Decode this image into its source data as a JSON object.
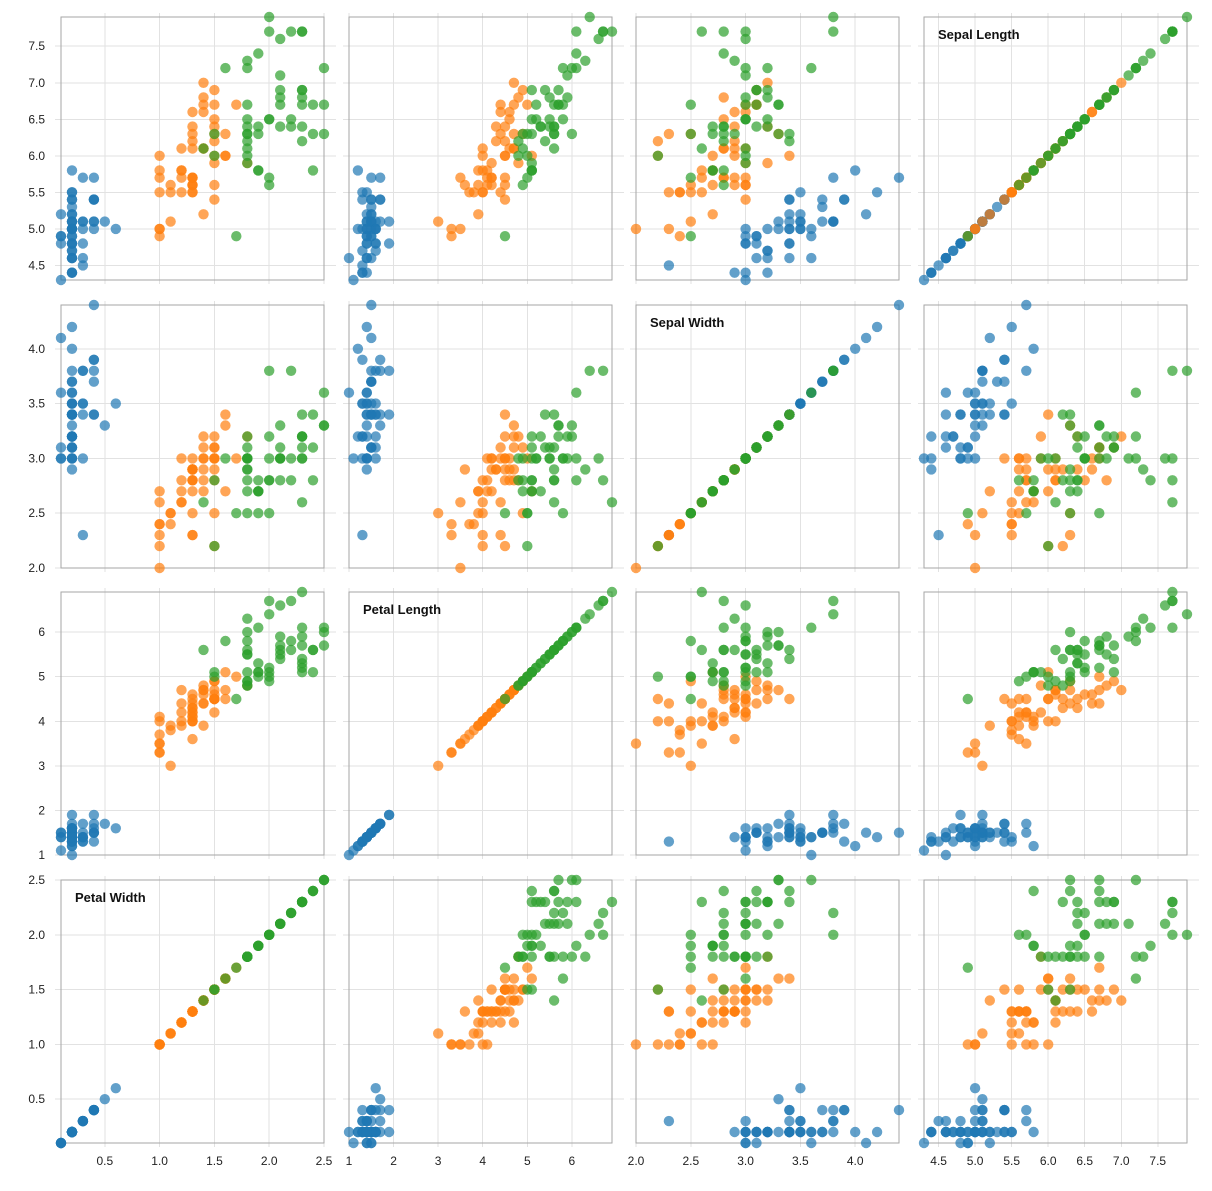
{
  "chart_data": {
    "type": "scatter",
    "layout": "scatter-plot-matrix",
    "grid": true,
    "variables": [
      {
        "key": "sl",
        "label": "Sepal Length",
        "domain": [
          4.3,
          7.9
        ],
        "ticks": [
          4.5,
          5.0,
          5.5,
          6.0,
          6.5,
          7.0,
          7.5
        ],
        "tick_labels": [
          "4.5",
          "5.0",
          "5.5",
          "6.0",
          "6.5",
          "7.0",
          "7.5"
        ]
      },
      {
        "key": "sw",
        "label": "Sepal Width",
        "domain": [
          2.0,
          4.4
        ],
        "ticks": [
          2.0,
          2.5,
          3.0,
          3.5,
          4.0
        ],
        "tick_labels": [
          "2.0",
          "2.5",
          "3.0",
          "3.5",
          "4.0"
        ]
      },
      {
        "key": "pl",
        "label": "Petal Length",
        "domain": [
          1.0,
          6.9
        ],
        "ticks": [
          1,
          2,
          3,
          4,
          5,
          6
        ],
        "tick_labels": [
          "1",
          "2",
          "3",
          "4",
          "5",
          "6"
        ]
      },
      {
        "key": "pw",
        "label": "Petal Width",
        "domain": [
          0.1,
          2.5
        ],
        "ticks": [
          0.5,
          1.0,
          1.5,
          2.0,
          2.5
        ],
        "tick_labels": [
          "0.5",
          "1.0",
          "1.5",
          "2.0",
          "2.5"
        ]
      }
    ],
    "row_order": [
      "sl",
      "sw",
      "pl",
      "pw"
    ],
    "col_order": [
      "pw",
      "pl",
      "sw",
      "sl"
    ],
    "bottom_axis_order": [
      "pw",
      "pl",
      "sw",
      "sl"
    ],
    "series": [
      {
        "color": "#1f77b4",
        "points": [
          [
            5.1,
            3.5,
            1.4,
            0.2
          ],
          [
            4.9,
            3.0,
            1.4,
            0.2
          ],
          [
            4.7,
            3.2,
            1.3,
            0.2
          ],
          [
            4.6,
            3.1,
            1.5,
            0.2
          ],
          [
            5.0,
            3.6,
            1.4,
            0.2
          ],
          [
            5.4,
            3.9,
            1.7,
            0.4
          ],
          [
            4.6,
            3.4,
            1.4,
            0.3
          ],
          [
            5.0,
            3.4,
            1.5,
            0.2
          ],
          [
            4.4,
            2.9,
            1.4,
            0.2
          ],
          [
            4.9,
            3.1,
            1.5,
            0.1
          ],
          [
            5.4,
            3.7,
            1.5,
            0.2
          ],
          [
            4.8,
            3.4,
            1.6,
            0.2
          ],
          [
            4.8,
            3.0,
            1.4,
            0.1
          ],
          [
            4.3,
            3.0,
            1.1,
            0.1
          ],
          [
            5.8,
            4.0,
            1.2,
            0.2
          ],
          [
            5.7,
            4.4,
            1.5,
            0.4
          ],
          [
            5.4,
            3.9,
            1.3,
            0.4
          ],
          [
            5.1,
            3.5,
            1.4,
            0.3
          ],
          [
            5.7,
            3.8,
            1.7,
            0.3
          ],
          [
            5.1,
            3.8,
            1.5,
            0.3
          ],
          [
            5.4,
            3.4,
            1.7,
            0.2
          ],
          [
            5.1,
            3.7,
            1.5,
            0.4
          ],
          [
            4.6,
            3.6,
            1.0,
            0.2
          ],
          [
            5.1,
            3.3,
            1.7,
            0.5
          ],
          [
            4.8,
            3.4,
            1.9,
            0.2
          ],
          [
            5.0,
            3.0,
            1.6,
            0.2
          ],
          [
            5.0,
            3.4,
            1.6,
            0.4
          ],
          [
            5.2,
            3.5,
            1.5,
            0.2
          ],
          [
            5.2,
            3.4,
            1.4,
            0.2
          ],
          [
            4.7,
            3.2,
            1.6,
            0.2
          ],
          [
            4.8,
            3.1,
            1.6,
            0.2
          ],
          [
            5.4,
            3.4,
            1.5,
            0.4
          ],
          [
            5.2,
            4.1,
            1.5,
            0.1
          ],
          [
            5.5,
            4.2,
            1.4,
            0.2
          ],
          [
            4.9,
            3.1,
            1.5,
            0.2
          ],
          [
            5.0,
            3.2,
            1.2,
            0.2
          ],
          [
            5.5,
            3.5,
            1.3,
            0.2
          ],
          [
            4.9,
            3.6,
            1.4,
            0.1
          ],
          [
            4.4,
            3.0,
            1.3,
            0.2
          ],
          [
            5.1,
            3.4,
            1.5,
            0.2
          ],
          [
            5.0,
            3.5,
            1.3,
            0.3
          ],
          [
            4.5,
            2.3,
            1.3,
            0.3
          ],
          [
            4.4,
            3.2,
            1.3,
            0.2
          ],
          [
            5.0,
            3.5,
            1.6,
            0.6
          ],
          [
            5.1,
            3.8,
            1.9,
            0.4
          ],
          [
            4.8,
            3.0,
            1.4,
            0.3
          ],
          [
            5.1,
            3.8,
            1.6,
            0.2
          ],
          [
            4.6,
            3.2,
            1.4,
            0.2
          ],
          [
            5.3,
            3.7,
            1.5,
            0.2
          ],
          [
            5.0,
            3.3,
            1.4,
            0.2
          ]
        ]
      },
      {
        "color": "#ff7f0e",
        "points": [
          [
            7.0,
            3.2,
            4.7,
            1.4
          ],
          [
            6.4,
            3.2,
            4.5,
            1.5
          ],
          [
            6.9,
            3.1,
            4.9,
            1.5
          ],
          [
            5.5,
            2.3,
            4.0,
            1.3
          ],
          [
            6.5,
            2.8,
            4.6,
            1.5
          ],
          [
            5.7,
            2.8,
            4.5,
            1.3
          ],
          [
            6.3,
            3.3,
            4.7,
            1.6
          ],
          [
            4.9,
            2.4,
            3.3,
            1.0
          ],
          [
            6.6,
            2.9,
            4.6,
            1.3
          ],
          [
            5.2,
            2.7,
            3.9,
            1.4
          ],
          [
            5.0,
            2.0,
            3.5,
            1.0
          ],
          [
            5.9,
            3.0,
            4.2,
            1.5
          ],
          [
            6.0,
            2.2,
            4.0,
            1.0
          ],
          [
            6.1,
            2.9,
            4.7,
            1.4
          ],
          [
            5.6,
            2.9,
            3.6,
            1.3
          ],
          [
            6.7,
            3.1,
            4.4,
            1.4
          ],
          [
            5.6,
            3.0,
            4.5,
            1.5
          ],
          [
            5.8,
            2.7,
            4.1,
            1.0
          ],
          [
            6.2,
            2.2,
            4.5,
            1.5
          ],
          [
            5.6,
            2.5,
            3.9,
            1.1
          ],
          [
            5.9,
            3.2,
            4.8,
            1.8
          ],
          [
            6.1,
            2.8,
            4.0,
            1.3
          ],
          [
            6.3,
            2.5,
            4.9,
            1.5
          ],
          [
            6.1,
            2.8,
            4.7,
            1.2
          ],
          [
            6.4,
            2.9,
            4.3,
            1.3
          ],
          [
            6.6,
            3.0,
            4.4,
            1.4
          ],
          [
            6.8,
            2.8,
            4.8,
            1.4
          ],
          [
            6.7,
            3.0,
            5.0,
            1.7
          ],
          [
            6.0,
            2.9,
            4.5,
            1.5
          ],
          [
            5.7,
            2.6,
            3.5,
            1.0
          ],
          [
            5.5,
            2.4,
            3.8,
            1.1
          ],
          [
            5.5,
            2.4,
            3.7,
            1.0
          ],
          [
            5.8,
            2.7,
            3.9,
            1.2
          ],
          [
            6.0,
            2.7,
            5.1,
            1.6
          ],
          [
            5.4,
            3.0,
            4.5,
            1.5
          ],
          [
            6.0,
            3.4,
            4.5,
            1.6
          ],
          [
            6.7,
            3.1,
            4.7,
            1.5
          ],
          [
            6.3,
            2.3,
            4.4,
            1.3
          ],
          [
            5.6,
            3.0,
            4.1,
            1.3
          ],
          [
            5.5,
            2.5,
            4.0,
            1.3
          ],
          [
            5.5,
            2.6,
            4.4,
            1.2
          ],
          [
            6.1,
            3.0,
            4.6,
            1.4
          ],
          [
            5.8,
            2.6,
            4.0,
            1.2
          ],
          [
            5.0,
            2.3,
            3.3,
            1.0
          ],
          [
            5.6,
            2.7,
            4.2,
            1.3
          ],
          [
            5.7,
            3.0,
            4.2,
            1.2
          ],
          [
            5.7,
            2.9,
            4.2,
            1.3
          ],
          [
            6.2,
            2.9,
            4.3,
            1.3
          ],
          [
            5.1,
            2.5,
            3.0,
            1.1
          ],
          [
            5.7,
            2.8,
            4.1,
            1.3
          ]
        ]
      },
      {
        "color": "#2ca02c",
        "points": [
          [
            6.3,
            3.3,
            6.0,
            2.5
          ],
          [
            5.8,
            2.7,
            5.1,
            1.9
          ],
          [
            7.1,
            3.0,
            5.9,
            2.1
          ],
          [
            6.3,
            2.9,
            5.6,
            1.8
          ],
          [
            6.5,
            3.0,
            5.8,
            2.2
          ],
          [
            7.6,
            3.0,
            6.6,
            2.1
          ],
          [
            4.9,
            2.5,
            4.5,
            1.7
          ],
          [
            7.3,
            2.9,
            6.3,
            1.8
          ],
          [
            6.7,
            2.5,
            5.8,
            1.8
          ],
          [
            7.2,
            3.6,
            6.1,
            2.5
          ],
          [
            6.5,
            3.2,
            5.1,
            2.0
          ],
          [
            6.4,
            2.7,
            5.3,
            1.9
          ],
          [
            6.8,
            3.0,
            5.5,
            2.1
          ],
          [
            5.7,
            2.5,
            5.0,
            2.0
          ],
          [
            5.8,
            2.8,
            5.1,
            2.4
          ],
          [
            6.4,
            3.2,
            5.3,
            2.3
          ],
          [
            6.5,
            3.0,
            5.5,
            1.8
          ],
          [
            7.7,
            3.8,
            6.7,
            2.2
          ],
          [
            7.7,
            2.6,
            6.9,
            2.3
          ],
          [
            6.0,
            2.2,
            5.0,
            1.5
          ],
          [
            6.9,
            3.2,
            5.7,
            2.3
          ],
          [
            5.6,
            2.8,
            4.9,
            2.0
          ],
          [
            7.7,
            2.8,
            6.7,
            2.0
          ],
          [
            6.3,
            2.7,
            4.9,
            1.8
          ],
          [
            6.7,
            3.3,
            5.7,
            2.1
          ],
          [
            7.2,
            3.2,
            6.0,
            1.8
          ],
          [
            6.2,
            2.8,
            4.8,
            1.8
          ],
          [
            6.1,
            3.0,
            4.9,
            1.8
          ],
          [
            6.4,
            2.8,
            5.6,
            2.1
          ],
          [
            7.2,
            3.0,
            5.8,
            1.6
          ],
          [
            7.4,
            2.8,
            6.1,
            1.9
          ],
          [
            7.9,
            3.8,
            6.4,
            2.0
          ],
          [
            6.4,
            2.8,
            5.6,
            2.2
          ],
          [
            6.3,
            2.8,
            5.1,
            1.5
          ],
          [
            6.1,
            2.6,
            5.6,
            1.4
          ],
          [
            7.7,
            3.0,
            6.1,
            2.3
          ],
          [
            6.3,
            3.4,
            5.6,
            2.4
          ],
          [
            6.4,
            3.1,
            5.5,
            1.8
          ],
          [
            6.0,
            3.0,
            4.8,
            1.8
          ],
          [
            6.9,
            3.1,
            5.4,
            2.1
          ],
          [
            6.7,
            3.1,
            5.6,
            2.4
          ],
          [
            6.9,
            3.1,
            5.1,
            2.3
          ],
          [
            5.8,
            2.7,
            5.1,
            1.9
          ],
          [
            6.8,
            3.2,
            5.9,
            2.3
          ],
          [
            6.7,
            3.3,
            5.7,
            2.5
          ],
          [
            6.7,
            3.0,
            5.2,
            2.3
          ],
          [
            6.3,
            2.5,
            5.0,
            1.9
          ],
          [
            6.5,
            3.0,
            5.2,
            2.0
          ],
          [
            6.2,
            3.4,
            5.4,
            2.3
          ],
          [
            5.9,
            3.0,
            5.1,
            1.8
          ]
        ]
      }
    ]
  }
}
